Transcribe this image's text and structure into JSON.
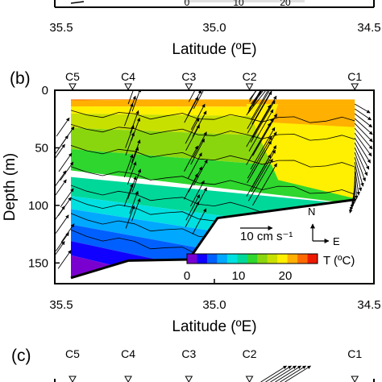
{
  "chart_data": {
    "type": "heatmap",
    "panel_label": "(b)",
    "next_panel_label": "(c)",
    "xlabel": "Latitude (ºE)",
    "ylabel": "Depth (m)",
    "x_ticks": [
      "35.5",
      "35.0",
      "34.5"
    ],
    "x_tick_values": [
      35.5,
      35.0,
      34.5
    ],
    "xlim": [
      35.5,
      34.5
    ],
    "y_ticks": [
      "0",
      "50",
      "100",
      "150"
    ],
    "y_tick_values": [
      0,
      50,
      100,
      150
    ],
    "ylim": [
      0,
      168
    ],
    "stations": [
      {
        "name": "C5",
        "lat": 35.5
      },
      {
        "name": "C4",
        "lat": 35.27
      },
      {
        "name": "C3",
        "lat": 35.08
      },
      {
        "name": "C2",
        "lat": 34.89
      },
      {
        "name": "C1",
        "lat": 34.56
      }
    ],
    "bottom_depth": [
      {
        "lat": 35.5,
        "depth": 163
      },
      {
        "lat": 35.27,
        "depth": 148
      },
      {
        "lat": 35.08,
        "depth": 147
      },
      {
        "lat": 34.99,
        "depth": 111
      },
      {
        "lat": 34.56,
        "depth": 95
      }
    ],
    "temperature_scale": {
      "label": "T (ºC)",
      "ticks": [
        "0",
        "10",
        "20"
      ],
      "tick_values": [
        0,
        10,
        20
      ],
      "range": [
        -2,
        26
      ],
      "colors": [
        "#7a00d0",
        "#1000ff",
        "#0060ff",
        "#00a8ff",
        "#00e0e0",
        "#00d89a",
        "#2ed62e",
        "#8ad60e",
        "#c8e000",
        "#ffef00",
        "#ffb000",
        "#ff6a00",
        "#ee1a00"
      ]
    },
    "vector_scale": {
      "label": "10 cm s⁻¹",
      "speed_cm_s": 10
    },
    "orientation": {
      "north": "N",
      "east": "E"
    },
    "grid": false
  }
}
